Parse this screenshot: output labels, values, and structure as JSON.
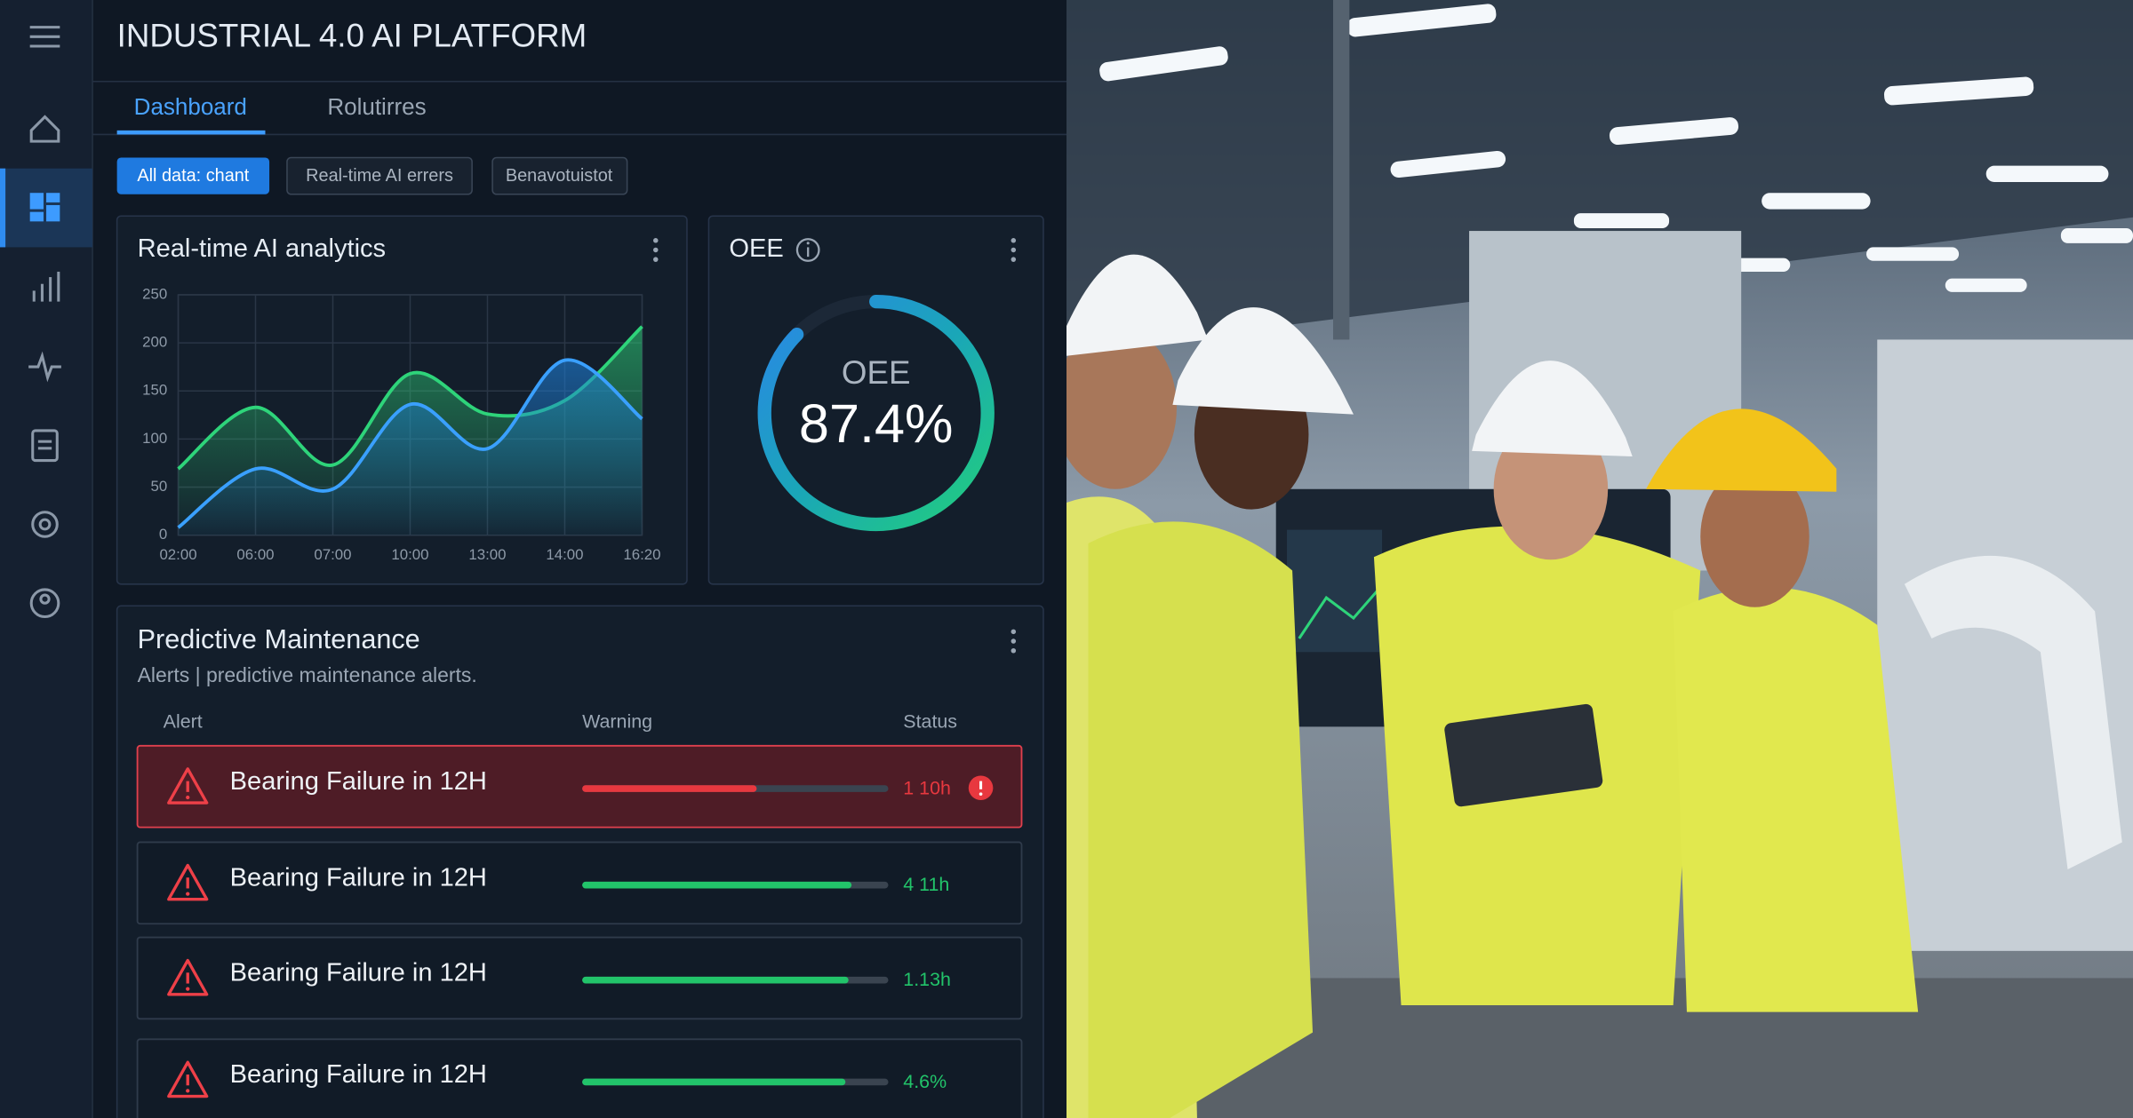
{
  "header": {
    "title": "INDUSTRIAL 4.0 AI PLATFORM"
  },
  "tabs": [
    "Dashboard",
    "Rolutirres"
  ],
  "filters": [
    "All data: chant",
    "Real-time AI errers",
    "Benavotuistot"
  ],
  "analytics": {
    "title": "Real-time AI analytics",
    "chart": {
      "type": "line",
      "categories": [
        "02:00",
        "06:00",
        "07:00",
        "10:00",
        "13:00",
        "14:00",
        "16:20"
      ],
      "series": [
        {
          "color": "#2ed47a",
          "values": [
            69,
            133,
            73,
            168,
            126,
            140,
            217
          ]
        },
        {
          "color": "#3aa0ff",
          "values": [
            8,
            69,
            48,
            136,
            90,
            182,
            121
          ]
        }
      ],
      "ylim": [
        0,
        250
      ],
      "yticks": [
        0,
        50,
        100,
        150,
        200,
        250
      ],
      "grid": true
    }
  },
  "oee": {
    "title": "OEE",
    "label": "OEE",
    "value": 87.4,
    "value_label": "87.4%"
  },
  "maintenance": {
    "title": "Predictive Maintenance",
    "subtitle": "Alerts | predictive maintenance alerts.",
    "columns": [
      "Alert",
      "Warning",
      "Status"
    ],
    "rows": [
      {
        "alert": "Bearing Failure in 12H",
        "progress": 57,
        "status": "1 10h",
        "color": "#e8383f"
      },
      {
        "alert": "Bearing Failure in 12H",
        "progress": 88,
        "status": "4 11h",
        "color": "#22c46a"
      },
      {
        "alert": "Bearing Failure in 12H",
        "progress": 87,
        "status": "1.13h",
        "color": "#22c46a"
      },
      {
        "alert": "Bearing Failure in 12H",
        "progress": 86,
        "status": "4.6%",
        "color": "#22c46a"
      }
    ]
  }
}
